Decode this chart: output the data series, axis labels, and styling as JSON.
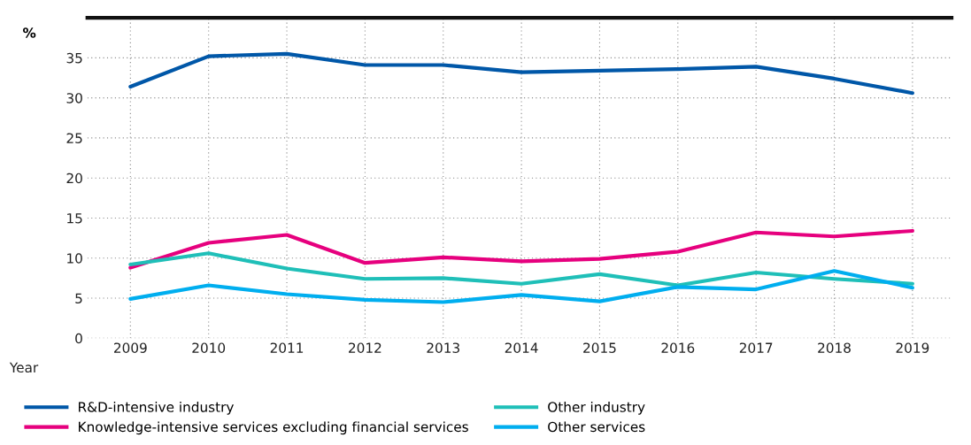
{
  "chart_data": {
    "type": "line",
    "ylabel": "%",
    "xlabel": "Year",
    "categories": [
      "2009",
      "2010",
      "2011",
      "2012",
      "2013",
      "2014",
      "2015",
      "2016",
      "2017",
      "2018",
      "2019"
    ],
    "series": [
      {
        "name": "R&D-intensive industry",
        "color": "#0057a8",
        "values": [
          31.4,
          35.2,
          35.5,
          34.1,
          34.1,
          33.2,
          33.4,
          33.6,
          33.9,
          32.4,
          30.6
        ]
      },
      {
        "name": "Knowledge-intensive services excluding financial services",
        "color": "#e6007e",
        "values": [
          8.8,
          11.9,
          12.9,
          9.4,
          10.1,
          9.6,
          9.9,
          10.8,
          13.2,
          12.7,
          13.4
        ]
      },
      {
        "name": "Other industry",
        "color": "#1fbfb8",
        "values": [
          9.2,
          10.6,
          8.7,
          7.4,
          7.5,
          6.8,
          8.0,
          6.6,
          8.2,
          7.4,
          6.8
        ]
      },
      {
        "name": "Other services",
        "color": "#00aeef",
        "values": [
          4.9,
          6.6,
          5.5,
          4.8,
          4.5,
          5.4,
          4.6,
          6.4,
          6.1,
          8.4,
          6.3
        ]
      }
    ],
    "ylim": [
      0,
      40
    ],
    "yticks": [
      0,
      5,
      10,
      15,
      20,
      25,
      30,
      35,
      {
        "value": 40,
        "label": null
      }
    ],
    "grid": true,
    "legend": "bottom",
    "marker": "none",
    "line_style": "solid"
  }
}
